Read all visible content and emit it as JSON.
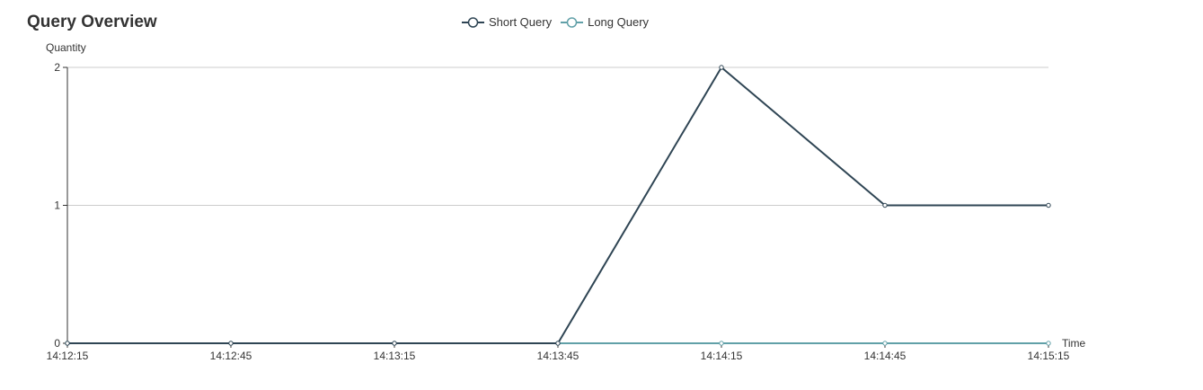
{
  "chart_data": {
    "type": "line",
    "title": "Query Overview",
    "xlabel": "Time",
    "ylabel": "Quantity",
    "categories": [
      "14:12:15",
      "14:12:45",
      "14:13:15",
      "14:13:45",
      "14:14:15",
      "14:14:45",
      "14:15:15"
    ],
    "ylim": [
      0,
      2
    ],
    "yticks": [
      0,
      1,
      2
    ],
    "grid": true,
    "legend_position": "top-center",
    "series": [
      {
        "name": "Short Query",
        "values": [
          0,
          0,
          0,
          0,
          2,
          1,
          1
        ],
        "color": "#2f4554"
      },
      {
        "name": "Long Query",
        "values": [
          0,
          0,
          0,
          0,
          0,
          0,
          0
        ],
        "color": "#61a0a8"
      }
    ]
  }
}
